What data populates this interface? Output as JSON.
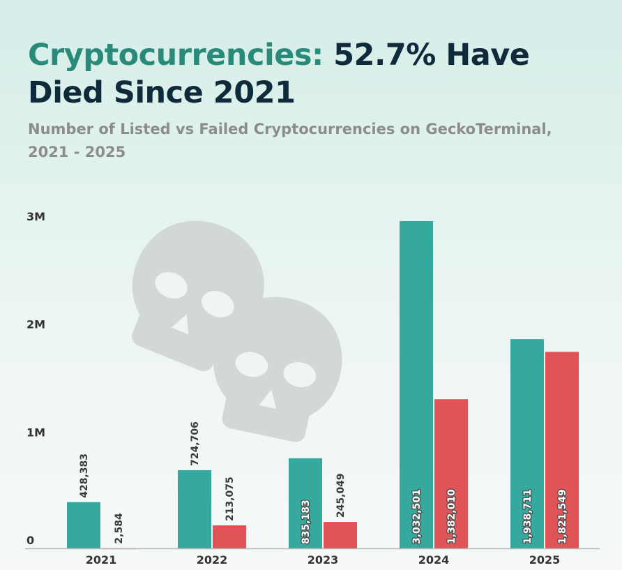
{
  "header": {
    "title_accent": "Cryptocurrencies:",
    "title_rest": " 52.7% Have Died Since 2021",
    "subtitle": "Number of Listed vs Failed Cryptocurrencies on GeckoTerminal, 2021 - 2025"
  },
  "colors": {
    "listed": "#36a99f",
    "failed": "#df5456",
    "title_accent": "#2a8a7a",
    "title": "#0e2a3b",
    "skull": "#d2d8d6"
  },
  "icons": [
    "skull-icon",
    "skull-icon"
  ],
  "chart_data": {
    "type": "bar",
    "title": "Cryptocurrencies: 52.7% Have Died Since 2021",
    "subtitle": "Number of Listed vs Failed Cryptocurrencies on GeckoTerminal, 2021 - 2025",
    "categories": [
      "2021",
      "2022",
      "2023",
      "2024",
      "2025"
    ],
    "series": [
      {
        "values": [
          428383,
          724706,
          835183,
          3032501,
          1938711
        ],
        "labels": [
          "428,383",
          "724,706",
          "835,183",
          "3,032,501",
          "1,938,711"
        ],
        "color": "#36a99f"
      },
      {
        "values": [
          2584,
          213075,
          245049,
          1382010,
          1821549
        ],
        "labels": [
          "2,584",
          "213,075",
          "245,049",
          "1,382,010",
          "1,821,549"
        ],
        "color": "#df5456"
      }
    ],
    "ylim": [
      0,
      3000000
    ],
    "yticks": [
      0,
      1000000,
      2000000,
      3000000
    ],
    "ytick_labels": [
      "0",
      "1M",
      "2M",
      "3M"
    ],
    "xlabel": "",
    "ylabel": "",
    "grid": false,
    "legend": "none"
  }
}
